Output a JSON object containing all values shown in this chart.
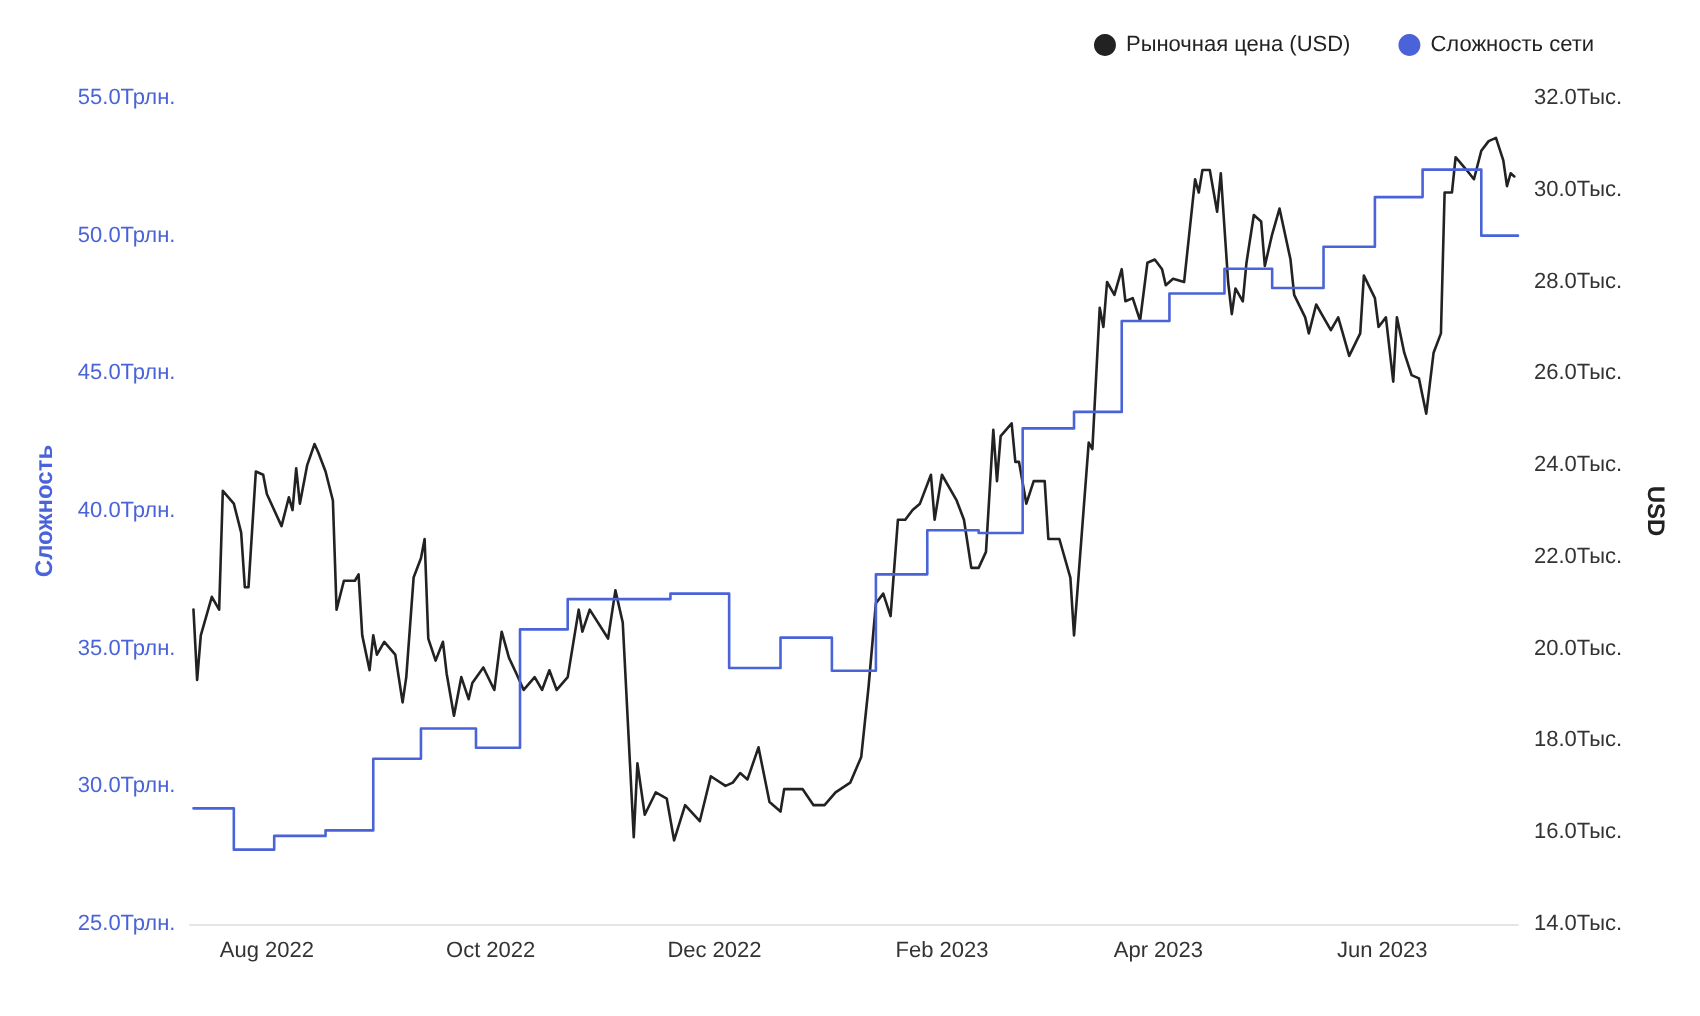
{
  "chart_data": {
    "type": "line",
    "ylabel": "Сложность",
    "y2label": "USD",
    "legend": "top right",
    "grid": false,
    "marker": "none",
    "line_style": "solid",
    "xlim": [
      "2022-07-11",
      "2023-07-08"
    ],
    "xticks": [
      {
        "value": "2022-08-01",
        "label": "Aug 2022"
      },
      {
        "value": "2022-10-01",
        "label": "Oct 2022"
      },
      {
        "value": "2022-12-01",
        "label": "Dec 2022"
      },
      {
        "value": "2023-02-01",
        "label": "Feb 2023"
      },
      {
        "value": "2023-04-01",
        "label": "Apr 2023"
      },
      {
        "value": "2023-06-01",
        "label": "Jun 2023"
      }
    ],
    "ylim": [
      25,
      55
    ],
    "yticks": [
      {
        "value": 25,
        "label": "25.0Трлн."
      },
      {
        "value": 30,
        "label": "30.0Трлн."
      },
      {
        "value": 35,
        "label": "35.0Трлн."
      },
      {
        "value": 40,
        "label": "40.0Трлн."
      },
      {
        "value": 45,
        "label": "45.0Трлн."
      },
      {
        "value": 50,
        "label": "50.0Трлн."
      },
      {
        "value": 55,
        "label": "55.0Трлн."
      }
    ],
    "y2lim": [
      14,
      32
    ],
    "y2ticks": [
      {
        "value": 14,
        "label": "14.0Тыс."
      },
      {
        "value": 16,
        "label": "16.0Тыс."
      },
      {
        "value": 18,
        "label": "18.0Тыс."
      },
      {
        "value": 20,
        "label": "20.0Тыс."
      },
      {
        "value": 22,
        "label": "22.0Тыс."
      },
      {
        "value": 24,
        "label": "24.0Тыс."
      },
      {
        "value": 26,
        "label": "26.0Тыс."
      },
      {
        "value": 28,
        "label": "28.0Тыс."
      },
      {
        "value": 30,
        "label": "30.0Тыс."
      },
      {
        "value": 32,
        "label": "32.0Тыс."
      }
    ],
    "series": [
      {
        "name": "Рыночная цена (USD)",
        "axis": "y2",
        "color": "#222222",
        "x": [
          "2022-07-12",
          "2022-07-13",
          "2022-07-14",
          "2022-07-17",
          "2022-07-19",
          "2022-07-20",
          "2022-07-23",
          "2022-07-25",
          "2022-07-26",
          "2022-07-27",
          "2022-07-29",
          "2022-07-31",
          "2022-08-01",
          "2022-08-05",
          "2022-08-07",
          "2022-08-08",
          "2022-08-09",
          "2022-08-10",
          "2022-08-12",
          "2022-08-14",
          "2022-08-15",
          "2022-08-17",
          "2022-08-19",
          "2022-08-20",
          "2022-08-22",
          "2022-08-25",
          "2022-08-26",
          "2022-08-27",
          "2022-08-29",
          "2022-08-30",
          "2022-08-31",
          "2022-09-02",
          "2022-09-05",
          "2022-09-07",
          "2022-09-08",
          "2022-09-10",
          "2022-09-12",
          "2022-09-13",
          "2022-09-14",
          "2022-09-16",
          "2022-09-18",
          "2022-09-19",
          "2022-09-21",
          "2022-09-23",
          "2022-09-25",
          "2022-09-26",
          "2022-09-29",
          "2022-10-02",
          "2022-10-04",
          "2022-10-06",
          "2022-10-08",
          "2022-10-10",
          "2022-10-13",
          "2022-10-15",
          "2022-10-17",
          "2022-10-19",
          "2022-10-22",
          "2022-10-25",
          "2022-10-26",
          "2022-10-28",
          "2022-11-02",
          "2022-11-04",
          "2022-11-06",
          "2022-11-09",
          "2022-11-10",
          "2022-11-12",
          "2022-11-15",
          "2022-11-18",
          "2022-11-20",
          "2022-11-23",
          "2022-11-27",
          "2022-11-30",
          "2022-12-04",
          "2022-12-06",
          "2022-12-08",
          "2022-12-10",
          "2022-12-13",
          "2022-12-16",
          "2022-12-19",
          "2022-12-20",
          "2022-12-25",
          "2022-12-28",
          "2022-12-31",
          "2023-01-03",
          "2023-01-07",
          "2023-01-10",
          "2023-01-12",
          "2023-01-14",
          "2023-01-16",
          "2023-01-18",
          "2023-01-20",
          "2023-01-22",
          "2023-01-24",
          "2023-01-26",
          "2023-01-29",
          "2023-01-30",
          "2023-02-01",
          "2023-02-05",
          "2023-02-07",
          "2023-02-09",
          "2023-02-11",
          "2023-02-13",
          "2023-02-15",
          "2023-02-16",
          "2023-02-17",
          "2023-02-20",
          "2023-02-21",
          "2023-02-22",
          "2023-02-24",
          "2023-02-26",
          "2023-03-01",
          "2023-03-02",
          "2023-03-05",
          "2023-03-08",
          "2023-03-09",
          "2023-03-11",
          "2023-03-13",
          "2023-03-14",
          "2023-03-16",
          "2023-03-17",
          "2023-03-18",
          "2023-03-20",
          "2023-03-22",
          "2023-03-23",
          "2023-03-25",
          "2023-03-27",
          "2023-03-29",
          "2023-03-31",
          "2023-04-02",
          "2023-04-03",
          "2023-04-05",
          "2023-04-08",
          "2023-04-11",
          "2023-04-12",
          "2023-04-13",
          "2023-04-15",
          "2023-04-17",
          "2023-04-18",
          "2023-04-20",
          "2023-04-21",
          "2023-04-22",
          "2023-04-24",
          "2023-04-25",
          "2023-04-27",
          "2023-04-29",
          "2023-04-30",
          "2023-05-02",
          "2023-05-04",
          "2023-05-07",
          "2023-05-08",
          "2023-05-11",
          "2023-05-12",
          "2023-05-14",
          "2023-05-16",
          "2023-05-18",
          "2023-05-20",
          "2023-05-21",
          "2023-05-23",
          "2023-05-26",
          "2023-05-27",
          "2023-05-30",
          "2023-05-31",
          "2023-06-02",
          "2023-06-04",
          "2023-06-05",
          "2023-06-07",
          "2023-06-09",
          "2023-06-11",
          "2023-06-13",
          "2023-06-15",
          "2023-06-17",
          "2023-06-18",
          "2023-06-20",
          "2023-06-21",
          "2023-06-24",
          "2023-06-26",
          "2023-06-28",
          "2023-06-30",
          "2023-07-02",
          "2023-07-04",
          "2023-07-05",
          "2023-07-06",
          "2023-07-07"
        ],
        "values": [
          20.85,
          19.32,
          20.29,
          21.13,
          20.85,
          23.44,
          23.16,
          22.53,
          21.34,
          21.34,
          23.86,
          23.79,
          23.37,
          22.67,
          23.3,
          23.02,
          23.93,
          23.16,
          24.0,
          24.46,
          24.28,
          23.86,
          23.23,
          20.85,
          21.48,
          21.48,
          21.62,
          20.29,
          19.53,
          20.29,
          19.87,
          20.15,
          19.87,
          18.83,
          19.38,
          21.55,
          21.97,
          22.39,
          20.22,
          19.74,
          20.15,
          19.46,
          18.54,
          19.38,
          18.9,
          19.25,
          19.59,
          19.1,
          20.37,
          19.8,
          19.46,
          19.1,
          19.38,
          19.1,
          19.53,
          19.1,
          19.38,
          20.85,
          20.37,
          20.85,
          20.22,
          21.27,
          20.57,
          15.89,
          17.5,
          16.38,
          16.87,
          16.73,
          15.82,
          16.59,
          16.24,
          17.22,
          17.01,
          17.08,
          17.29,
          17.15,
          17.85,
          16.66,
          16.45,
          16.94,
          16.94,
          16.59,
          16.59,
          16.87,
          17.08,
          17.64,
          19.17,
          20.99,
          21.2,
          20.71,
          22.81,
          22.81,
          23.02,
          23.16,
          23.79,
          22.81,
          23.79,
          23.23,
          22.81,
          21.76,
          21.76,
          22.11,
          24.77,
          23.65,
          24.63,
          24.91,
          24.07,
          24.07,
          23.16,
          23.65,
          23.65,
          22.39,
          22.39,
          21.55,
          20.29,
          22.39,
          24.49,
          24.35,
          27.43,
          27.01,
          27.99,
          27.71,
          28.27,
          27.57,
          27.64,
          27.15,
          28.41,
          28.48,
          28.27,
          27.92,
          28.06,
          27.99,
          30.23,
          29.94,
          30.43,
          30.43,
          29.52,
          30.36,
          27.99,
          27.29,
          27.85,
          27.57,
          28.41,
          29.45,
          29.31,
          28.34,
          29.03,
          29.59,
          28.48,
          27.71,
          27.22,
          26.87,
          27.5,
          27.22,
          26.94,
          27.22,
          26.94,
          26.38,
          26.87,
          28.13,
          27.64,
          27.01,
          27.22,
          25.82,
          27.22,
          26.45,
          25.96,
          25.89,
          25.12,
          26.45,
          26.87,
          29.94,
          29.94,
          30.71,
          30.43,
          30.23,
          30.85,
          31.06,
          31.13,
          30.64,
          30.08,
          30.36,
          30.29
        ]
      },
      {
        "name": "Сложность сети",
        "type": "step",
        "color": "#4a63d8",
        "x": [
          "2022-07-12",
          "2022-07-23",
          "2022-08-03",
          "2022-08-17",
          "2022-08-30",
          "2022-09-12",
          "2022-09-27",
          "2022-10-09",
          "2022-10-22",
          "2022-11-19",
          "2022-12-05",
          "2022-12-19",
          "2023-01-02",
          "2023-01-14",
          "2023-01-28",
          "2023-02-11",
          "2023-02-23",
          "2023-03-09",
          "2023-03-22",
          "2023-04-04",
          "2023-04-19",
          "2023-05-02",
          "2023-05-16",
          "2023-05-30",
          "2023-06-12",
          "2023-06-28",
          "2023-07-08"
        ],
        "values": [
          29.2,
          27.7,
          28.2,
          28.4,
          31.0,
          32.1,
          31.4,
          35.7,
          36.8,
          37.0,
          34.3,
          35.4,
          34.2,
          37.7,
          39.3,
          39.2,
          43.0,
          43.6,
          46.9,
          47.9,
          48.8,
          48.1,
          49.6,
          51.4,
          52.4,
          50.0,
          50.0
        ]
      }
    ]
  }
}
